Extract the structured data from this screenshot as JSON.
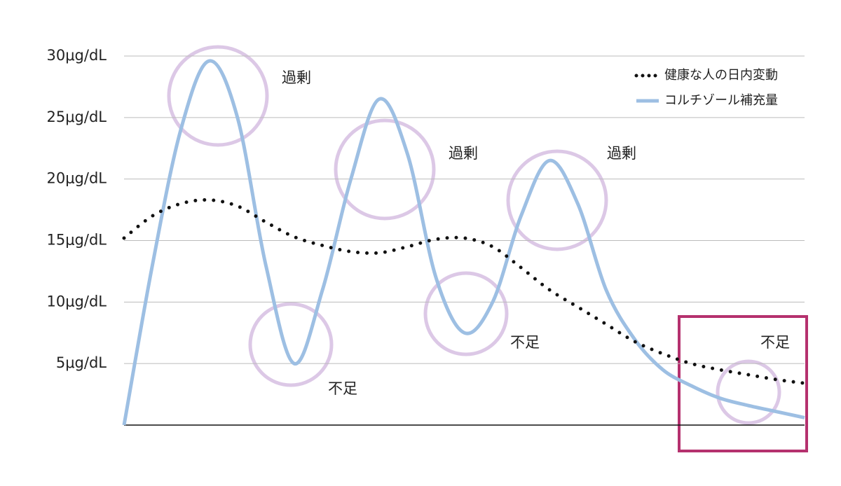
{
  "chart_data": {
    "type": "line",
    "categories": [
      null,
      null,
      null,
      null,
      null,
      null,
      null,
      null,
      null,
      null,
      null,
      null,
      null,
      null,
      null,
      null,
      null,
      null,
      null,
      null,
      null,
      null,
      null,
      null,
      null
    ],
    "series": [
      {
        "name": "健康な人の日内変動",
        "color": "#111111",
        "style": "dotted",
        "values": [
          15.2,
          17,
          18,
          18.3,
          17.8,
          16.5,
          15.3,
          14.6,
          14.1,
          14,
          14.5,
          15.1,
          15.2,
          14.5,
          12.8,
          11,
          9.6,
          8.2,
          6.8,
          5.8,
          5,
          4.5,
          4.1,
          3.7,
          3.4
        ]
      },
      {
        "name": "コルチゾール補充量",
        "color": "#9dbfe3",
        "style": "solid",
        "values": [
          0,
          13,
          24,
          29.6,
          25,
          13,
          5,
          11,
          20,
          26.5,
          22,
          12,
          7.5,
          10,
          17,
          21.5,
          18,
          11,
          7,
          4.5,
          3.2,
          2.2,
          1.6,
          1.1,
          0.6
        ]
      }
    ],
    "ylim": [
      0,
      30
    ],
    "yticks": [
      {
        "value": 5,
        "label": "5μg/dL"
      },
      {
        "value": 10,
        "label": "10μg/dL"
      },
      {
        "value": 15,
        "label": "15μg/dL"
      },
      {
        "value": 20,
        "label": "20μg/dL"
      },
      {
        "value": 25,
        "label": "25μg/dL"
      },
      {
        "value": 30,
        "label": "30μg/dL"
      }
    ],
    "grid": true,
    "legend": "top-right",
    "annotations": [
      "過剰",
      "過剰",
      "過剰",
      "不足",
      "不足",
      "不足"
    ]
  }
}
